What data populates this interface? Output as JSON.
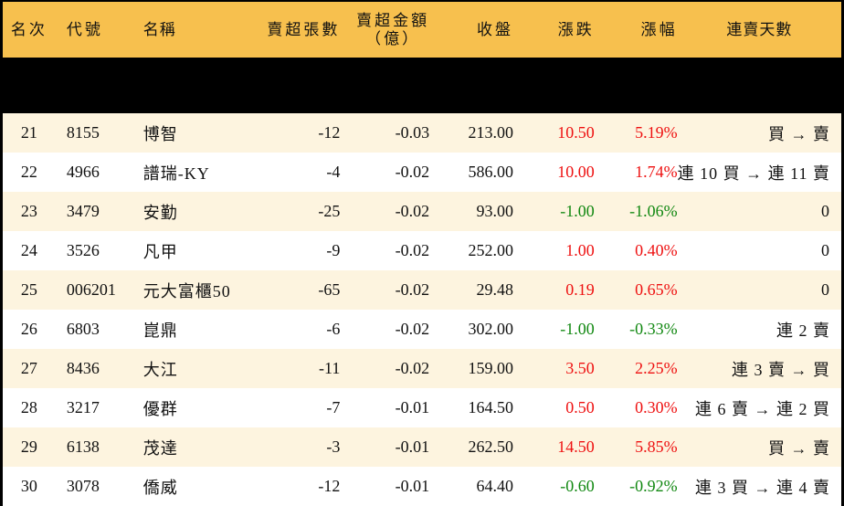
{
  "table": {
    "headers": {
      "rank": "名次",
      "code": "代號",
      "name": "名稱",
      "sell_lots": "賣超張數",
      "sell_amount_line1": "賣超金額",
      "sell_amount_line2": "（億）",
      "close": "收盤",
      "change": "漲跌",
      "change_pct": "漲幅",
      "consecutive_days": "連賣天數"
    },
    "colors": {
      "header_bg": "#F7C04E",
      "row_odd_bg": "#FDF4DF",
      "row_even_bg": "#FFFFFF",
      "up": "#EE1111",
      "down": "#118811"
    },
    "rows": [
      {
        "rank": "21",
        "code": "8155",
        "name": "博智",
        "sell_lots": "-12",
        "sell_amount": "-0.03",
        "close": "213.00",
        "change": "10.50",
        "change_pct": "5.19%",
        "direction": "up",
        "days": "買 → 賣"
      },
      {
        "rank": "22",
        "code": "4966",
        "name": "譜瑞-KY",
        "sell_lots": "-4",
        "sell_amount": "-0.02",
        "close": "586.00",
        "change": "10.00",
        "change_pct": "1.74%",
        "direction": "up",
        "days": "連 10 買 → 連 11 賣"
      },
      {
        "rank": "23",
        "code": "3479",
        "name": "安勤",
        "sell_lots": "-25",
        "sell_amount": "-0.02",
        "close": "93.00",
        "change": "-1.00",
        "change_pct": "-1.06%",
        "direction": "down",
        "days": "0"
      },
      {
        "rank": "24",
        "code": "3526",
        "name": "凡甲",
        "sell_lots": "-9",
        "sell_amount": "-0.02",
        "close": "252.00",
        "change": "1.00",
        "change_pct": "0.40%",
        "direction": "up",
        "days": "0"
      },
      {
        "rank": "25",
        "code": "006201",
        "name": "元大富櫃50",
        "sell_lots": "-65",
        "sell_amount": "-0.02",
        "close": "29.48",
        "change": "0.19",
        "change_pct": "0.65%",
        "direction": "up",
        "days": "0"
      },
      {
        "rank": "26",
        "code": "6803",
        "name": "崑鼎",
        "sell_lots": "-6",
        "sell_amount": "-0.02",
        "close": "302.00",
        "change": "-1.00",
        "change_pct": "-0.33%",
        "direction": "down",
        "days": "連 2 賣"
      },
      {
        "rank": "27",
        "code": "8436",
        "name": "大江",
        "sell_lots": "-11",
        "sell_amount": "-0.02",
        "close": "159.00",
        "change": "3.50",
        "change_pct": "2.25%",
        "direction": "up",
        "days": "連 3 賣 → 買"
      },
      {
        "rank": "28",
        "code": "3217",
        "name": "優群",
        "sell_lots": "-7",
        "sell_amount": "-0.01",
        "close": "164.50",
        "change": "0.50",
        "change_pct": "0.30%",
        "direction": "up",
        "days": "連 6 賣 → 連 2 買"
      },
      {
        "rank": "29",
        "code": "6138",
        "name": "茂達",
        "sell_lots": "-3",
        "sell_amount": "-0.01",
        "close": "262.50",
        "change": "14.50",
        "change_pct": "5.85%",
        "direction": "up",
        "days": "買 → 賣"
      },
      {
        "rank": "30",
        "code": "3078",
        "name": "僑威",
        "sell_lots": "-12",
        "sell_amount": "-0.01",
        "close": "64.40",
        "change": "-0.60",
        "change_pct": "-0.92%",
        "direction": "down",
        "days": "連 3 買 → 連 4 賣"
      }
    ]
  }
}
